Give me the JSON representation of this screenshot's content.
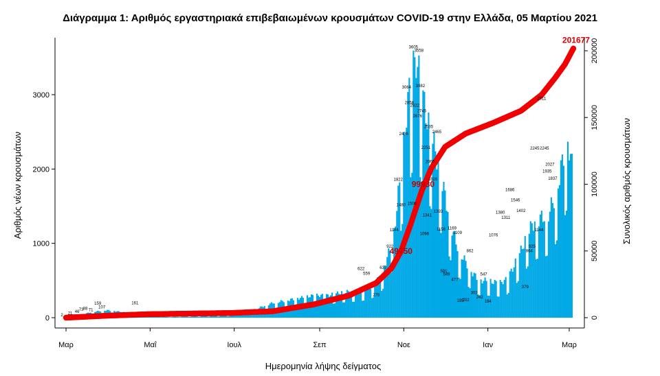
{
  "chart_data": {
    "type": "bar+line",
    "title": "Διάγραμμα 1: Αριθμός εργαστηριακά επιβεβαιωμένων κρουσμάτων COVID-19 στην Ελλάδα, 05 Μαρτίου 2021",
    "xlabel": "Ημερομηνία λήψης δείγματος",
    "ylabel_left": "Αριθμός νέων κρουσμάτων",
    "ylabel_right": "Συνολικός αριθμός κρουσμάτων",
    "ylim_left": [
      0,
      3800
    ],
    "ylim_right": [
      0,
      210000
    ],
    "yticks_left": [
      0,
      1000,
      2000,
      3000
    ],
    "yticks_right": [
      0,
      50000,
      100000,
      150000,
      200000
    ],
    "x_range_days": [
      -8,
      376
    ],
    "x_ticks": [
      {
        "label": "Μαρ",
        "day": 0
      },
      {
        "label": "Μαΐ",
        "day": 61
      },
      {
        "label": "Ιουλ",
        "day": 122
      },
      {
        "label": "Σεπ",
        "day": 184
      },
      {
        "label": "Νοε",
        "day": 245
      },
      {
        "label": "Ιαν",
        "day": 306
      },
      {
        "label": "Μαρ",
        "day": 365
      }
    ],
    "bar_color": "#00a9e6",
    "line_color": "#f00000",
    "daily_anchors": [
      [
        0,
        2
      ],
      [
        10,
        40
      ],
      [
        20,
        80
      ],
      [
        30,
        100
      ],
      [
        40,
        80
      ],
      [
        50,
        40
      ],
      [
        60,
        20
      ],
      [
        75,
        10
      ],
      [
        90,
        15
      ],
      [
        105,
        25
      ],
      [
        120,
        30
      ],
      [
        135,
        100
      ],
      [
        150,
        200
      ],
      [
        165,
        250
      ],
      [
        180,
        300
      ],
      [
        190,
        300
      ],
      [
        200,
        340
      ],
      [
        210,
        360
      ],
      [
        220,
        400
      ],
      [
        228,
        550
      ],
      [
        233,
        800
      ],
      [
        238,
        1150
      ],
      [
        241,
        1650
      ],
      [
        244,
        2100
      ],
      [
        247,
        2750
      ],
      [
        249,
        3050
      ],
      [
        252,
        3350
      ],
      [
        254,
        3500
      ],
      [
        257,
        3150
      ],
      [
        260,
        2850
      ],
      [
        264,
        2500
      ],
      [
        268,
        2250
      ],
      [
        272,
        1900
      ],
      [
        276,
        1550
      ],
      [
        280,
        1200
      ],
      [
        285,
        900
      ],
      [
        290,
        750
      ],
      [
        295,
        600
      ],
      [
        300,
        500
      ],
      [
        305,
        500
      ],
      [
        310,
        480
      ],
      [
        315,
        470
      ],
      [
        320,
        520
      ],
      [
        325,
        700
      ],
      [
        330,
        900
      ],
      [
        335,
        1150
      ],
      [
        340,
        1300
      ],
      [
        345,
        1350
      ],
      [
        350,
        1400
      ],
      [
        355,
        1650
      ],
      [
        358,
        1900
      ],
      [
        361,
        2200
      ],
      [
        363,
        2400
      ],
      [
        365,
        2300
      ],
      [
        367,
        2050
      ]
    ],
    "cumulative_anchors": [
      [
        0,
        0
      ],
      [
        30,
        1500
      ],
      [
        60,
        2600
      ],
      [
        120,
        3500
      ],
      [
        150,
        4800
      ],
      [
        180,
        10000
      ],
      [
        205,
        16500
      ],
      [
        225,
        26000
      ],
      [
        236,
        37000
      ],
      [
        243,
        49750
      ],
      [
        250,
        70000
      ],
      [
        258,
        95000
      ],
      [
        265,
        112000
      ],
      [
        275,
        128000
      ],
      [
        290,
        138000
      ],
      [
        310,
        146000
      ],
      [
        330,
        155000
      ],
      [
        345,
        167000
      ],
      [
        355,
        180000
      ],
      [
        362,
        190000
      ],
      [
        368,
        201677
      ]
    ],
    "bar_value_labels": [
      {
        "day": -3,
        "value": 2
      },
      {
        "day": 3,
        "value": 21
      },
      {
        "day": 8,
        "value": 46
      },
      {
        "day": 11,
        "value": 73
      },
      {
        "day": 14,
        "value": 88
      },
      {
        "day": 18,
        "value": 71
      },
      {
        "day": 23,
        "value": 159
      },
      {
        "day": 26,
        "value": 107
      },
      {
        "day": 50,
        "value": 161
      },
      {
        "day": 214,
        "value": 622
      },
      {
        "day": 218,
        "value": 559
      },
      {
        "day": 225,
        "value": 270
      },
      {
        "day": 230,
        "value": 637
      },
      {
        "day": 235,
        "value": 922
      },
      {
        "day": 238,
        "value": 1144
      },
      {
        "day": 241,
        "value": 1822
      },
      {
        "day": 243,
        "value": 1480
      },
      {
        "day": 245,
        "value": 2436
      },
      {
        "day": 247,
        "value": 3064
      },
      {
        "day": 249,
        "value": 2858
      },
      {
        "day": 251,
        "value": 1500
      },
      {
        "day": 252,
        "value": 3605
      },
      {
        "day": 253,
        "value": 2822
      },
      {
        "day": 255,
        "value": 2676
      },
      {
        "day": 256,
        "value": 3558
      },
      {
        "day": 257,
        "value": 3082
      },
      {
        "day": 258,
        "value": 2745
      },
      {
        "day": 260,
        "value": 1096
      },
      {
        "day": 261,
        "value": 2251
      },
      {
        "day": 262,
        "value": 1341
      },
      {
        "day": 263,
        "value": 2535
      },
      {
        "day": 264,
        "value": 2065
      },
      {
        "day": 266,
        "value": 1826
      },
      {
        "day": 269,
        "value": 2465
      },
      {
        "day": 270,
        "value": 1393
      },
      {
        "day": 272,
        "value": 1156
      },
      {
        "day": 274,
        "value": 591
      },
      {
        "day": 276,
        "value": 549
      },
      {
        "day": 280,
        "value": 1169
      },
      {
        "day": 282,
        "value": 477
      },
      {
        "day": 284,
        "value": 1109
      },
      {
        "day": 286,
        "value": 195
      },
      {
        "day": 290,
        "value": 202
      },
      {
        "day": 293,
        "value": 862
      },
      {
        "day": 296,
        "value": 302
      },
      {
        "day": 300,
        "value": 242
      },
      {
        "day": 303,
        "value": 547
      },
      {
        "day": 306,
        "value": 184
      },
      {
        "day": 310,
        "value": 1076
      },
      {
        "day": 315,
        "value": 1380
      },
      {
        "day": 319,
        "value": 1311
      },
      {
        "day": 322,
        "value": 1686
      },
      {
        "day": 326,
        "value": 1546
      },
      {
        "day": 330,
        "value": 1402
      },
      {
        "day": 333,
        "value": 379
      },
      {
        "day": 336,
        "value": 864
      },
      {
        "day": 338,
        "value": 925
      },
      {
        "day": 340,
        "value": 2245
      },
      {
        "day": 343,
        "value": 1144
      },
      {
        "day": 345,
        "value": 2911
      },
      {
        "day": 347,
        "value": 2245
      },
      {
        "day": 349,
        "value": 1935
      },
      {
        "day": 351,
        "value": 2027
      },
      {
        "day": 353,
        "value": 1837
      }
    ],
    "line_annotations": [
      {
        "label": "49750",
        "value": 49750,
        "day": 243
      },
      {
        "label": "99930",
        "value": 99930,
        "day": 259
      },
      {
        "label": "201677",
        "value": 201677,
        "day": 368
      }
    ]
  }
}
